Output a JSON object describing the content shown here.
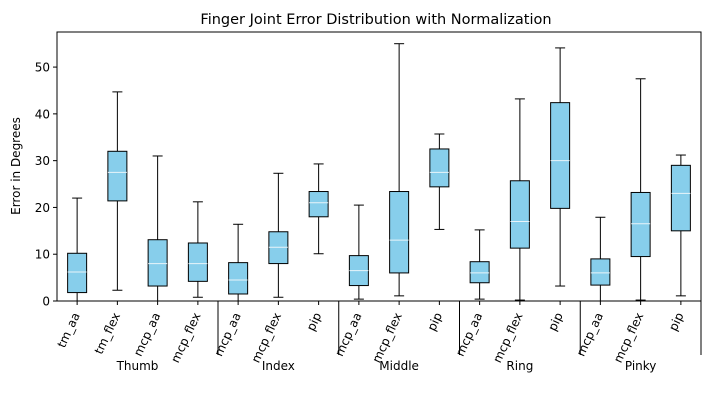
{
  "chart_data": {
    "type": "box",
    "title": "Finger Joint Error Distribution with Normalization",
    "xlabel": "",
    "ylabel": "Error in Degrees",
    "ylim": [
      0,
      57.5
    ],
    "yticks": [
      0,
      10,
      20,
      30,
      40,
      50
    ],
    "grid": false,
    "box_color": "#87CEEB",
    "median_color": "#E8F4FA",
    "categories": [
      "tm_aa",
      "tm_flex",
      "mcp_aa",
      "mcp_flex",
      "mcp_aa",
      "mcp_flex",
      "pip",
      "mcp_aa",
      "mcp_flex",
      "pip",
      "mcp_aa",
      "mcp_flex",
      "pip",
      "mcp_aa",
      "mcp_flex",
      "pip"
    ],
    "groups": [
      {
        "name": "Thumb",
        "count": 4
      },
      {
        "name": "Index",
        "count": 3
      },
      {
        "name": "Middle",
        "count": 3
      },
      {
        "name": "Ring",
        "count": 3
      },
      {
        "name": "Pinky",
        "count": 3
      }
    ],
    "boxes": [
      {
        "whislo": 0.0,
        "q1": 1.8,
        "med": 6.2,
        "q3": 10.2,
        "whishi": 22.0
      },
      {
        "whislo": 2.3,
        "q1": 21.4,
        "med": 27.5,
        "q3": 32.0,
        "whishi": 44.7
      },
      {
        "whislo": 0.0,
        "q1": 3.2,
        "med": 8.0,
        "q3": 13.1,
        "whishi": 31.0
      },
      {
        "whislo": 0.8,
        "q1": 4.2,
        "med": 8.0,
        "q3": 12.4,
        "whishi": 21.2
      },
      {
        "whislo": 0.0,
        "q1": 1.5,
        "med": 4.5,
        "q3": 8.2,
        "whishi": 16.4
      },
      {
        "whislo": 0.8,
        "q1": 8.0,
        "med": 11.5,
        "q3": 14.8,
        "whishi": 27.3
      },
      {
        "whislo": 10.1,
        "q1": 18.0,
        "med": 21.0,
        "q3": 23.4,
        "whishi": 29.3
      },
      {
        "whislo": 0.4,
        "q1": 3.3,
        "med": 6.5,
        "q3": 9.7,
        "whishi": 20.5
      },
      {
        "whislo": 1.1,
        "q1": 6.0,
        "med": 13.0,
        "q3": 23.4,
        "whishi": 55.0
      },
      {
        "whislo": 15.3,
        "q1": 24.4,
        "med": 27.5,
        "q3": 32.5,
        "whishi": 35.7
      },
      {
        "whislo": 0.4,
        "q1": 3.9,
        "med": 6.0,
        "q3": 8.4,
        "whishi": 15.2
      },
      {
        "whislo": 0.2,
        "q1": 11.3,
        "med": 17.0,
        "q3": 25.7,
        "whishi": 43.2
      },
      {
        "whislo": 3.2,
        "q1": 19.8,
        "med": 30.0,
        "q3": 42.4,
        "whishi": 54.1
      },
      {
        "whislo": 0.0,
        "q1": 3.4,
        "med": 6.0,
        "q3": 9.0,
        "whishi": 17.9
      },
      {
        "whislo": 0.2,
        "q1": 9.5,
        "med": 16.5,
        "q3": 23.2,
        "whishi": 47.5
      },
      {
        "whislo": 1.1,
        "q1": 15.0,
        "med": 23.0,
        "q3": 29.0,
        "whishi": 31.2
      }
    ]
  }
}
